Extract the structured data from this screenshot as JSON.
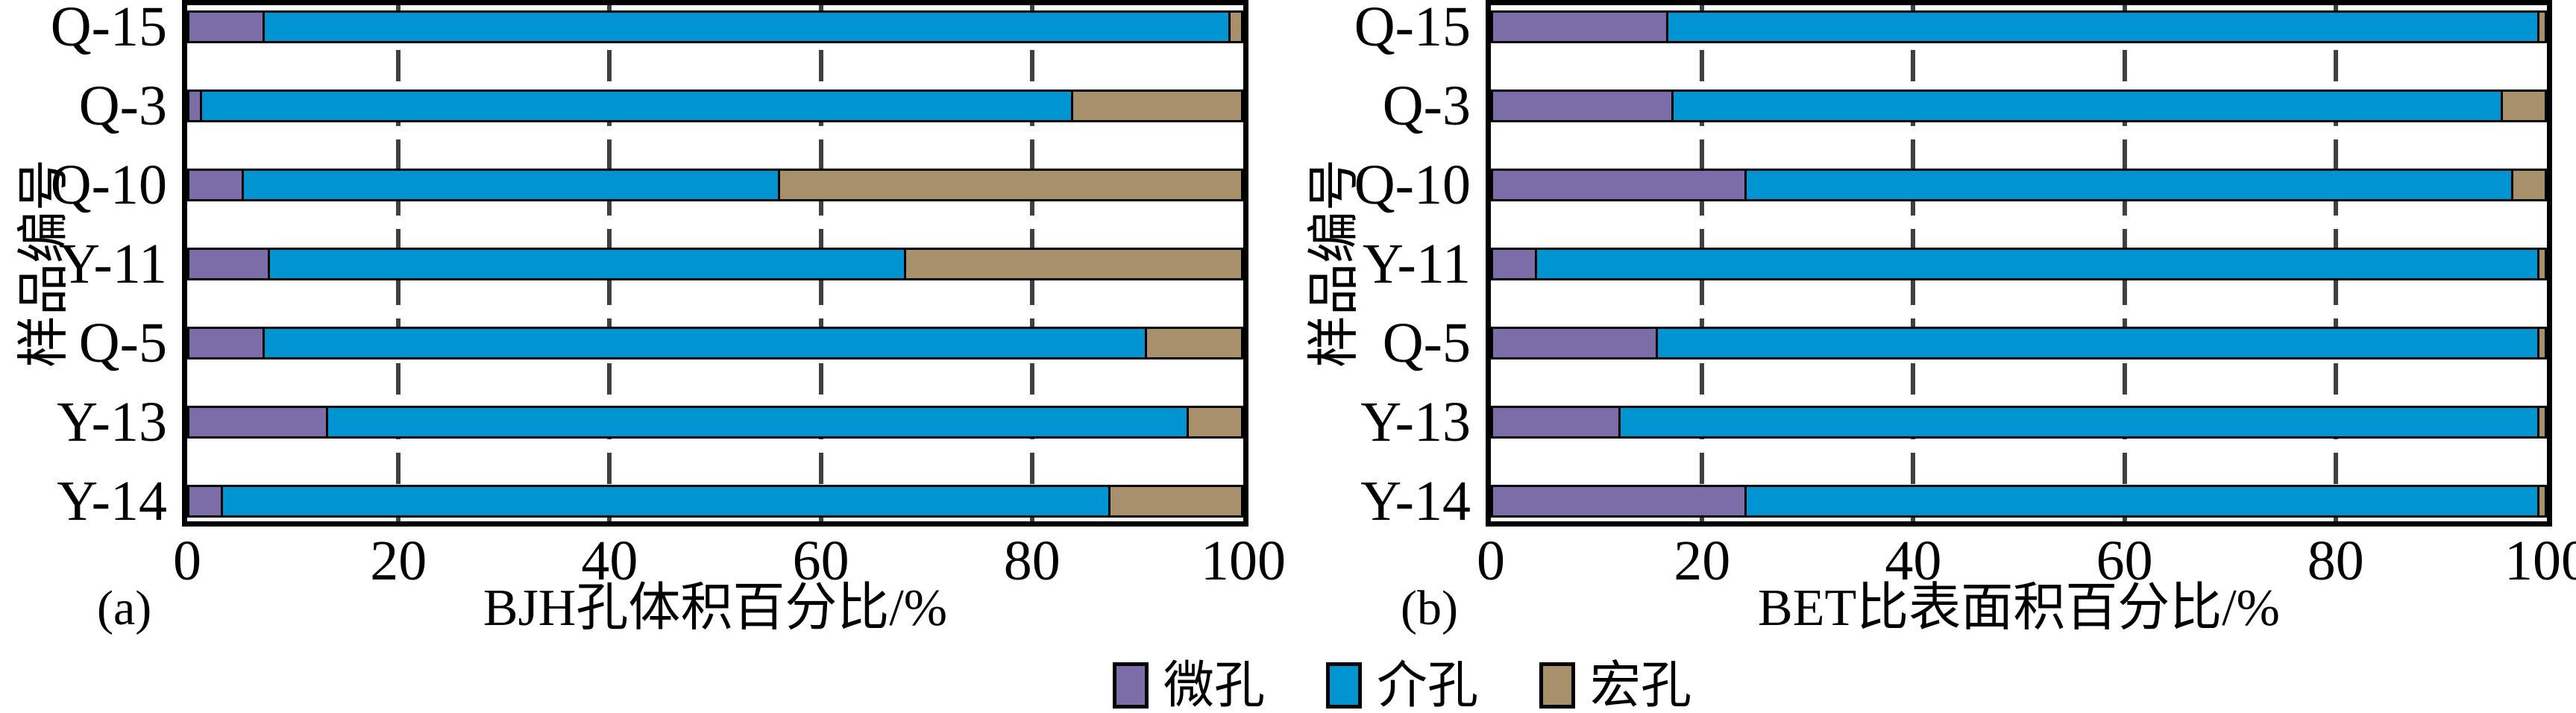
{
  "chart_data": [
    {
      "type": "bar",
      "orientation": "horizontal",
      "stacked": true,
      "panel_label": "(a)",
      "title": "",
      "xlabel": "BJH孔体积百分比/%",
      "ylabel": "样品编号",
      "categories": [
        "Q-15",
        "Q-3",
        "Q-10",
        "Y-11",
        "Q-5",
        "Y-13",
        "Y-14"
      ],
      "xlim": [
        0,
        100
      ],
      "xticks": [
        0,
        20,
        40,
        60,
        80,
        100
      ],
      "grid": "vertical-dashed",
      "series": [
        {
          "name": "微孔",
          "color": "#7C6CA8",
          "values": [
            7,
            1,
            5,
            7.5,
            7,
            13,
            3
          ]
        },
        {
          "name": "介孔",
          "color": "#0095D2",
          "values": [
            92,
            83,
            51,
            60.5,
            84,
            82,
            84.5
          ]
        },
        {
          "name": "宏孔",
          "color": "#A8916A",
          "values": [
            1,
            16,
            44,
            32,
            9,
            5,
            12.5
          ]
        }
      ]
    },
    {
      "type": "bar",
      "orientation": "horizontal",
      "stacked": true,
      "panel_label": "(b)",
      "title": "",
      "xlabel": "BET比表面积百分比/%",
      "ylabel": "样品编号",
      "categories": [
        "Q-15",
        "Q-3",
        "Q-10",
        "Y-11",
        "Q-5",
        "Y-13",
        "Y-14"
      ],
      "xlim": [
        0,
        100
      ],
      "xticks": [
        0,
        20,
        40,
        60,
        80,
        100
      ],
      "grid": "vertical-dashed",
      "series": [
        {
          "name": "微孔",
          "color": "#7C6CA8",
          "values": [
            16.5,
            17,
            24,
            4,
            15.5,
            12,
            24
          ]
        },
        {
          "name": "介孔",
          "color": "#0095D2",
          "values": [
            83,
            79,
            73,
            95.5,
            84,
            87.5,
            75.5
          ]
        },
        {
          "name": "宏孔",
          "color": "#A8916A",
          "values": [
            0.5,
            4,
            3,
            0.5,
            0.5,
            0.5,
            0.5
          ]
        }
      ]
    }
  ],
  "legend": {
    "items": [
      {
        "label": "微孔",
        "color": "#7C6CA8"
      },
      {
        "label": "介孔",
        "color": "#0095D2"
      },
      {
        "label": "宏孔",
        "color": "#A8916A"
      }
    ]
  },
  "colors": {
    "micropore": "#7C6CA8",
    "mesopore": "#0095D2",
    "macropore": "#A8916A",
    "frame": "#000000",
    "gridline": "#404040"
  }
}
